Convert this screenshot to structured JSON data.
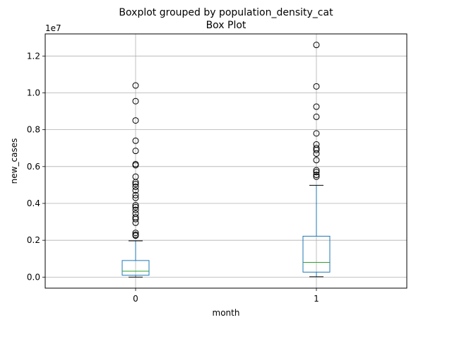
{
  "chart_data": {
    "type": "boxplot",
    "suptitle": "Boxplot grouped by population_density_cat",
    "title": "Box Plot",
    "xlabel": "month",
    "ylabel": "new_cases",
    "y_offset_label": "1e7",
    "categories": [
      "0",
      "1"
    ],
    "ylim": [
      -0.06,
      1.32
    ],
    "yticks": [
      0.0,
      0.2,
      0.4,
      0.6,
      0.8,
      1.0,
      1.2
    ],
    "ytick_labels": [
      "0.0",
      "0.2",
      "0.4",
      "0.6",
      "0.8",
      "1.0",
      "1.2"
    ],
    "grid": true,
    "colors": {
      "box": "#1f77b4",
      "median": "#2ca02c",
      "grid": "#b0b0b0"
    },
    "boxes": [
      {
        "category": "0",
        "whisker_low": 0.0,
        "q1": 0.01,
        "median": 0.032,
        "q3": 0.09,
        "whisker_high": 0.197,
        "fliers": [
          1.04,
          0.955,
          0.85,
          0.74,
          0.685,
          0.613,
          0.607,
          0.545,
          0.515,
          0.505,
          0.49,
          0.47,
          0.445,
          0.43,
          0.39,
          0.38,
          0.365,
          0.345,
          0.325,
          0.315,
          0.295,
          0.24,
          0.23,
          0.225
        ]
      },
      {
        "category": "1",
        "whisker_low": 0.002,
        "q1": 0.027,
        "median": 0.08,
        "q3": 0.222,
        "whisker_high": 0.498,
        "fliers": [
          1.26,
          1.035,
          0.925,
          0.87,
          0.78,
          0.72,
          0.7,
          0.69,
          0.67,
          0.635,
          0.58,
          0.57,
          0.555,
          0.545
        ]
      }
    ]
  }
}
